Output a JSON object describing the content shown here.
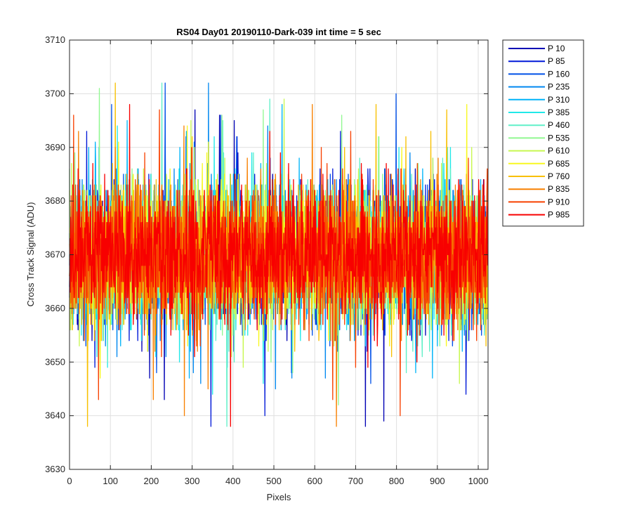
{
  "chart_data": {
    "type": "line",
    "title": "RS04 Day01 20190110-Dark-039 int time = 5 sec",
    "xlabel": "Pixels",
    "ylabel": "Cross Track Signal (ADU)",
    "xlim": [
      0,
      1024
    ],
    "ylim": [
      3630,
      3710
    ],
    "xticks": [
      "0",
      "100",
      "200",
      "300",
      "400",
      "500",
      "600",
      "700",
      "800",
      "900",
      "1000"
    ],
    "yticks": [
      "3630",
      "3640",
      "3650",
      "3660",
      "3670",
      "3680",
      "3690",
      "3700",
      "3710"
    ],
    "grid": true,
    "legend_position": "outside-top-right",
    "noise_model": {
      "center": 3670,
      "typical_range": [
        3655,
        3690
      ],
      "extremes": {
        "max": 3702,
        "min": 3638
      },
      "num_points": 1024
    },
    "series": [
      {
        "name": "P 10",
        "color": "#0000B4"
      },
      {
        "name": "P 85",
        "color": "#0018D8"
      },
      {
        "name": "P 160",
        "color": "#0050E8"
      },
      {
        "name": "P 235",
        "color": "#0088F0"
      },
      {
        "name": "P 310",
        "color": "#00B4F8"
      },
      {
        "name": "P 385",
        "color": "#20E8E8"
      },
      {
        "name": "P 460",
        "color": "#60F0C8"
      },
      {
        "name": "P 535",
        "color": "#90F890"
      },
      {
        "name": "P 610",
        "color": "#C8F850"
      },
      {
        "name": "P 685",
        "color": "#F8F820"
      },
      {
        "name": "P 760",
        "color": "#F8C000"
      },
      {
        "name": "P 835",
        "color": "#F88000"
      },
      {
        "name": "P 910",
        "color": "#F84000"
      },
      {
        "name": "P 985",
        "color": "#F80000"
      }
    ]
  }
}
